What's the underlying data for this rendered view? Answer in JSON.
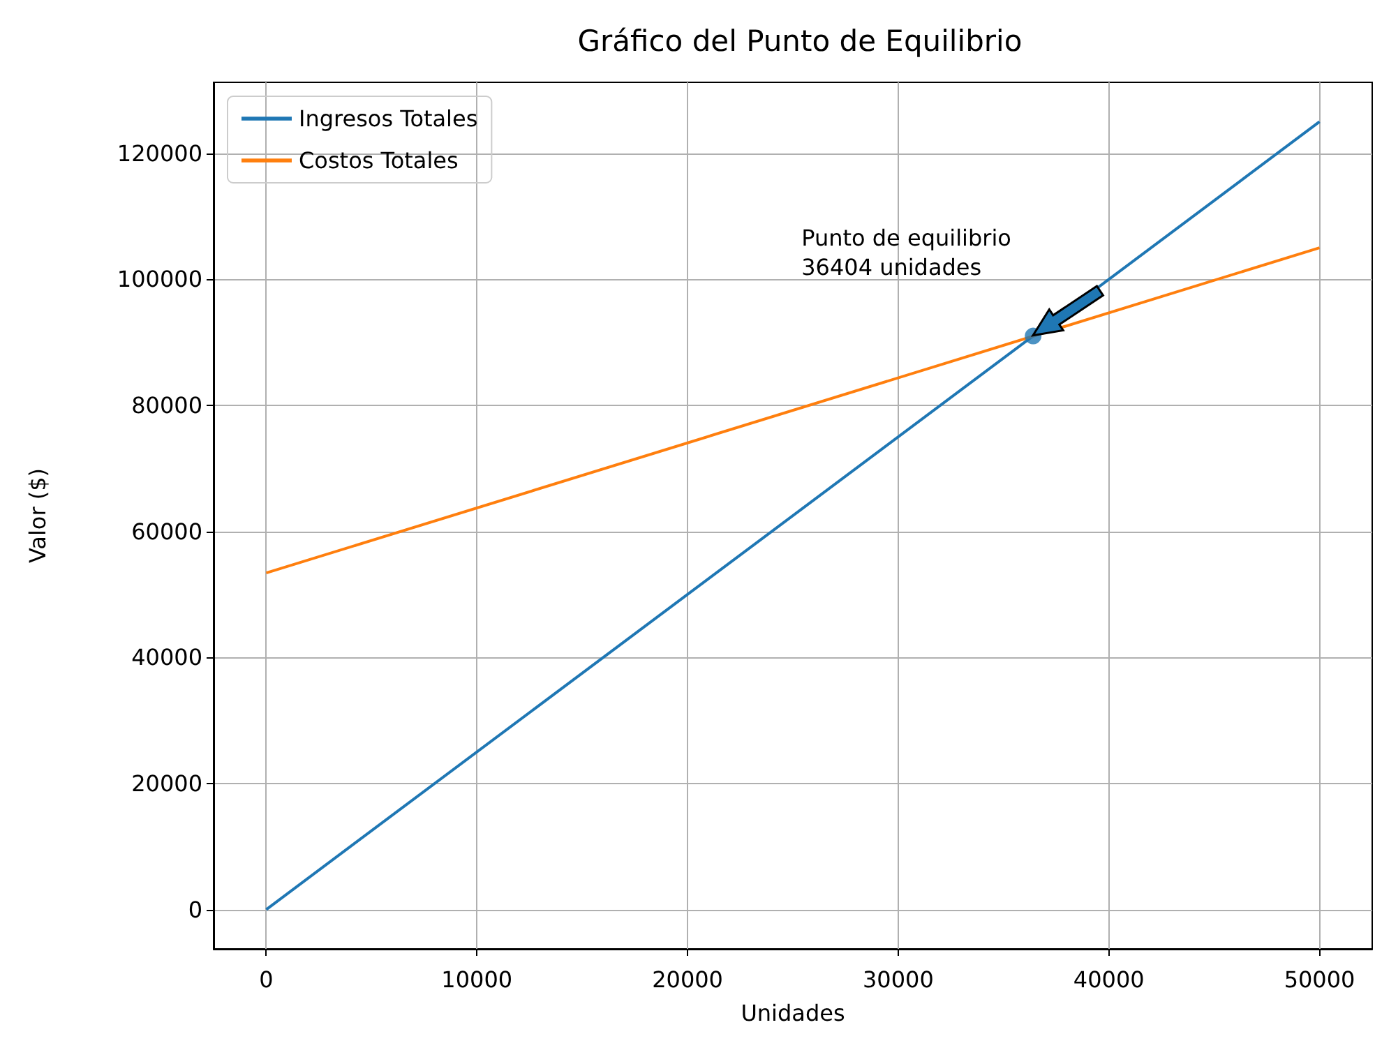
{
  "chart_data": {
    "type": "line",
    "title": "Gráfico del Punto de Equilibrio",
    "xlabel": "Unidades",
    "ylabel": "Valor ($)",
    "x": [
      0,
      50000
    ],
    "series": [
      {
        "name": "Ingresos Totales",
        "color": "#1f77b4",
        "values": [
          0,
          125000
        ]
      },
      {
        "name": "Costos Totales",
        "color": "#ff7f0e",
        "values": [
          53400,
          105000
        ]
      },
      {
        "type": "scatter",
        "color": "#1f77b4",
        "x": [
          36404
        ],
        "values": [
          91000
        ]
      }
    ],
    "annotations": [
      {
        "text": "Punto de equilibrio\n36404 unidades",
        "x": 36404,
        "y": 91010
      }
    ],
    "xlim": [
      -2500,
      52500
    ],
    "ylim": [
      -6250,
      131250
    ],
    "xticks": [
      0,
      10000,
      20000,
      30000,
      40000,
      50000
    ],
    "yticks": [
      0,
      20000,
      40000,
      60000,
      80000,
      100000,
      120000
    ],
    "grid": true,
    "legend": "top left"
  }
}
